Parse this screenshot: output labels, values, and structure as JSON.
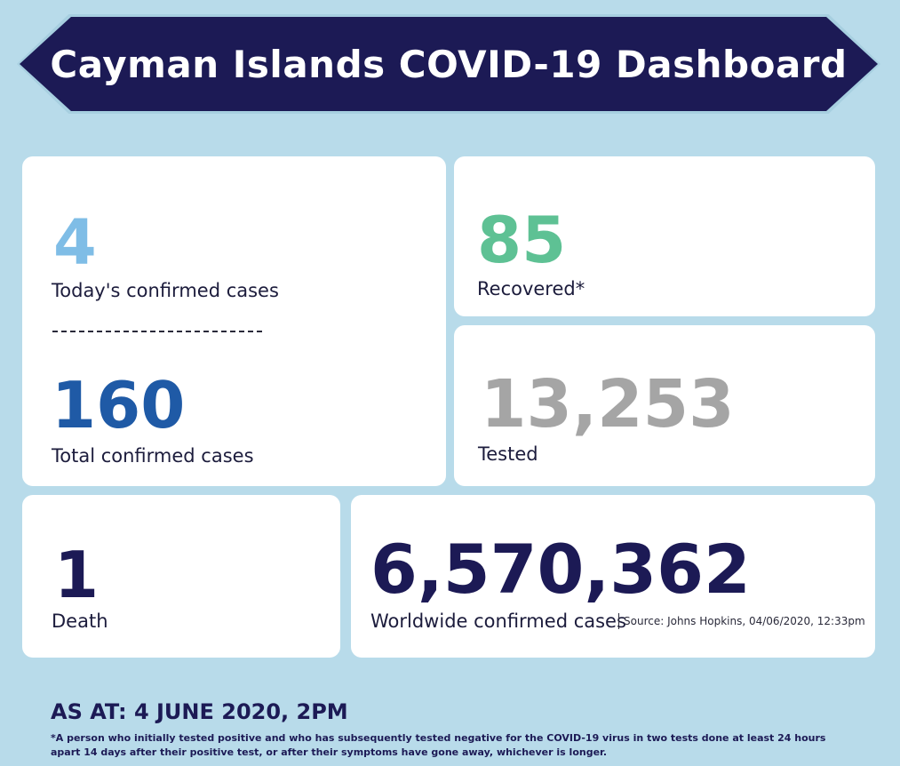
{
  "header": {
    "title": "Cayman Islands COVID-19 Dashboard"
  },
  "stats": {
    "today": {
      "value": "4",
      "label": "Today's confirmed cases"
    },
    "total": {
      "value": "160",
      "label": "Total confirmed cases"
    },
    "recovered": {
      "value": "85",
      "label": "Recovered*"
    },
    "tested": {
      "value": "13,253",
      "label": "Tested"
    },
    "death": {
      "value": "1",
      "label": "Death"
    },
    "worldwide": {
      "value": "6,570,362",
      "label": "Worldwide confirmed cases",
      "source": "Source: Johns Hopkins, 04/06/2020, 12:33pm"
    }
  },
  "footer": {
    "as_at": "AS AT: 4 JUNE 2020, 2PM",
    "footnote": "*A person who initially tested positive and who has subsequently tested negative for the COVID-19 virus in two tests done at least 24 hours apart 14 days after their positive test, or after their symptoms have gone away, whichever is longer."
  },
  "colors": {
    "background": "#b8dbea",
    "banner": "#1c1a55",
    "today": "#7fbde6",
    "total": "#1f5aa6",
    "recovered": "#5ec194",
    "tested": "#a5a5a5",
    "death": "#1c1a55",
    "worldwide": "#1c1a55"
  }
}
